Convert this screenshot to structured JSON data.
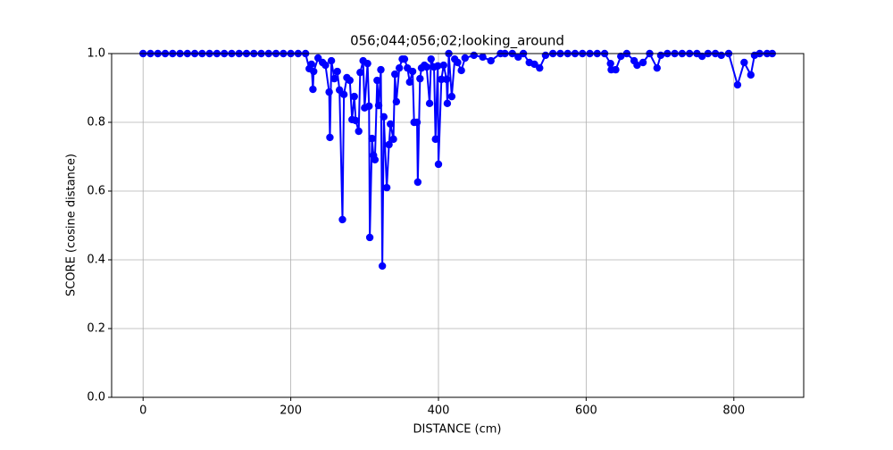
{
  "chart_data": {
    "type": "line",
    "title": "056;044;056;02;looking_around",
    "x_label": "DISTANCE (cm)",
    "y_label": "SCORE (cosine distance)",
    "color": "#0000ff",
    "grid": true,
    "markers": true,
    "xlim": [
      -42.6,
      894.6
    ],
    "ylim": [
      0,
      1
    ],
    "xticks": [
      0,
      200,
      400,
      600,
      800
    ],
    "yticks": [
      {
        "value": 0,
        "label": "0.0"
      },
      0.2,
      0.4,
      0.6,
      0.8,
      {
        "value": 1,
        "label": "1.0"
      }
    ],
    "x": [
      0,
      10,
      20,
      30,
      40,
      50,
      60,
      70,
      80,
      90,
      100,
      110,
      120,
      130,
      140,
      150,
      160,
      170,
      180,
      190,
      200,
      210,
      220,
      225,
      228,
      230,
      231,
      237,
      243,
      247,
      252,
      253,
      255,
      259,
      263,
      266,
      270,
      272,
      276,
      280,
      283,
      286,
      288,
      292,
      294,
      298,
      300,
      304,
      306,
      307,
      310,
      312,
      314,
      317,
      319,
      322,
      324,
      326,
      330,
      333,
      335,
      339,
      341,
      343,
      347,
      351,
      354,
      358,
      361,
      365,
      367,
      371,
      372,
      375,
      377,
      381,
      384,
      388,
      390,
      394,
      396,
      399,
      400,
      404,
      407,
      411,
      412,
      414,
      418,
      422,
      426,
      431,
      436,
      448,
      460,
      471,
      484,
      490,
      500,
      508,
      515,
      523,
      530,
      537,
      545,
      555,
      565,
      575,
      585,
      595,
      605,
      615,
      625,
      633,
      634,
      640,
      647,
      655,
      665,
      669,
      677,
      686,
      696,
      701,
      710,
      720,
      730,
      740,
      750,
      757,
      765,
      775,
      783,
      793,
      805,
      814,
      823,
      828,
      835,
      845,
      852
    ],
    "values": [
      1,
      1,
      1,
      1,
      1,
      1,
      1,
      1,
      1,
      1,
      1,
      1,
      1,
      1,
      1,
      1,
      1,
      1,
      1,
      1,
      1,
      1,
      1,
      0.956,
      0.969,
      0.896,
      0.948,
      0.987,
      0.974,
      0.966,
      0.888,
      0.756,
      0.979,
      0.927,
      0.948,
      0.894,
      0.517,
      0.881,
      0.93,
      0.922,
      0.808,
      0.875,
      0.805,
      0.774,
      0.945,
      0.979,
      0.842,
      0.971,
      0.847,
      0.465,
      0.753,
      0.704,
      0.691,
      0.922,
      0.849,
      0.953,
      0.382,
      0.816,
      0.61,
      0.735,
      0.795,
      0.751,
      0.94,
      0.86,
      0.958,
      0.984,
      0.984,
      0.958,
      0.917,
      0.948,
      0.8,
      0.8,
      0.626,
      0.927,
      0.958,
      0.966,
      0.961,
      0.855,
      0.984,
      0.961,
      0.751,
      0.964,
      0.678,
      0.925,
      0.966,
      0.925,
      0.855,
      1,
      0.875,
      0.984,
      0.974,
      0.951,
      0.987,
      0.995,
      0.99,
      0.979,
      1,
      1,
      1,
      0.99,
      1,
      0.974,
      0.969,
      0.958,
      0.995,
      1,
      1,
      1,
      1,
      1,
      1,
      1,
      1,
      0.971,
      0.953,
      0.953,
      0.992,
      1,
      0.979,
      0.966,
      0.974,
      1,
      0.958,
      0.995,
      1,
      1,
      1,
      1,
      1,
      0.992,
      1,
      1,
      0.995,
      1,
      0.909,
      0.974,
      0.938,
      0.995,
      1,
      1,
      1
    ]
  }
}
